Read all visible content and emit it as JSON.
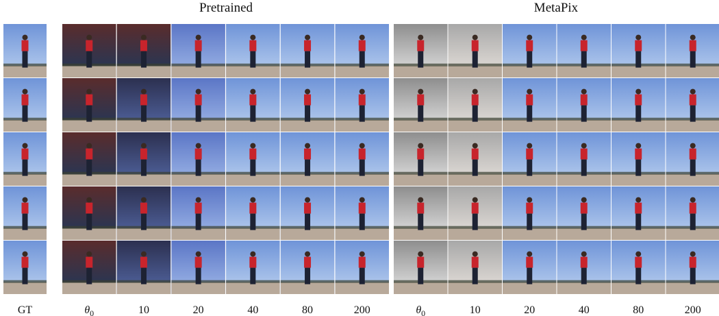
{
  "headers": {
    "pretrained": "Pretrained",
    "metapix": "MetaPix"
  },
  "columns": {
    "gt": "GT",
    "pretrained": [
      {
        "symbol": "θ",
        "subscript": "0"
      },
      "10",
      "20",
      "40",
      "80",
      "200"
    ],
    "metapix": [
      {
        "symbol": "θ",
        "subscript": "0"
      },
      "10",
      "20",
      "40",
      "80",
      "200"
    ]
  }
}
